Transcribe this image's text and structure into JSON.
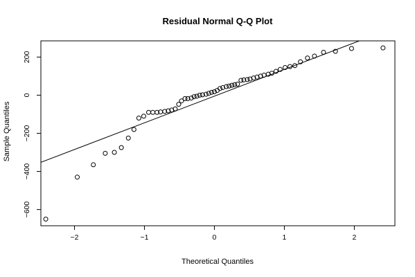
{
  "chart_data": {
    "type": "scatter",
    "title": "Residual Normal Q-Q Plot",
    "xlabel": "Theoretical Quantiles",
    "ylabel": "Sample Quantiles",
    "xlim": [
      -2.48,
      2.58
    ],
    "ylim": [
      -685,
      285
    ],
    "x_ticks": [
      -2,
      -1,
      0,
      1,
      2
    ],
    "y_ticks": [
      -600,
      -400,
      -200,
      0,
      200
    ],
    "grid": false,
    "series": [
      {
        "x": [
          -2.41,
          -1.96,
          -1.73,
          -1.56,
          -1.43,
          -1.33,
          -1.23,
          -1.15,
          -1.08,
          -1.01,
          -0.94,
          -0.88,
          -0.82,
          -0.77,
          -0.71,
          -0.66,
          -0.61,
          -0.56,
          -0.51,
          -0.47,
          -0.42,
          -0.38,
          -0.33,
          -0.29,
          -0.25,
          -0.21,
          -0.17,
          -0.12,
          -0.08,
          -0.04,
          0.0,
          0.04,
          0.08,
          0.12,
          0.17,
          0.21,
          0.25,
          0.29,
          0.33,
          0.38,
          0.42,
          0.47,
          0.51,
          0.56,
          0.61,
          0.66,
          0.71,
          0.77,
          0.82,
          0.88,
          0.94,
          1.01,
          1.08,
          1.15,
          1.23,
          1.33,
          1.43,
          1.56,
          1.73,
          1.96,
          2.41
        ],
        "y": [
          -650,
          -430,
          -365,
          -305,
          -300,
          -275,
          -225,
          -180,
          -120,
          -110,
          -90,
          -90,
          -90,
          -88,
          -85,
          -82,
          -78,
          -72,
          -48,
          -30,
          -18,
          -18,
          -15,
          -8,
          -5,
          0,
          2,
          5,
          10,
          15,
          18,
          25,
          35,
          40,
          45,
          48,
          52,
          55,
          58,
          78,
          80,
          82,
          85,
          90,
          95,
          100,
          105,
          110,
          115,
          125,
          135,
          145,
          150,
          155,
          175,
          195,
          205,
          225,
          230,
          245,
          248
        ]
      }
    ],
    "reference_line": {
      "intercept": -5,
      "slope": 140
    }
  }
}
